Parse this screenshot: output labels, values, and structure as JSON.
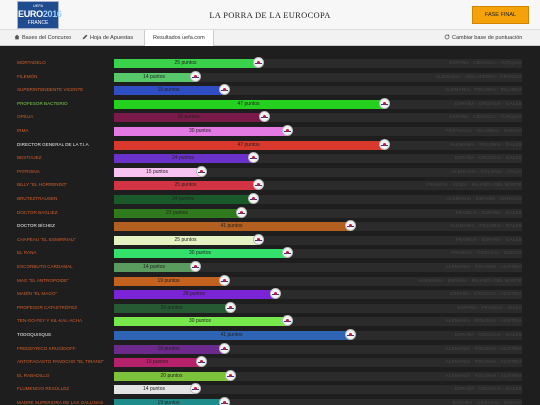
{
  "header": {
    "logo": {
      "uefa": "UEFA",
      "euro": "EURO",
      "year": "2016",
      "country": "FRANCE"
    },
    "title": "LA PORRA DE LA EUROCOPA",
    "fase_button": "FASE FINAL"
  },
  "nav": {
    "bases": "Bases del Concurso",
    "hoja": "Hoja de Apuestas",
    "resultados": "Resultados uefa.com",
    "cambiar": "Cambiar base de puntuación"
  },
  "colors": {
    "header_bg": "#f7f7f7",
    "accent": "#f5a10a",
    "page_bg": "#1e1e1e"
  },
  "rows": [
    {
      "name": "MORTADELO",
      "points": 25,
      "label": "25 puntos",
      "color": "#39d24a",
      "teams": "ESPAÑA · CROACIA · TURQUIA"
    },
    {
      "name": "FILEMÓN",
      "points": 14,
      "label": "14 puntos",
      "color": "#57c86a",
      "teams": "ALEMANIA · INGLATERRA · FRANCIA"
    },
    {
      "name": "SUPERINTENDENTE VICENTE",
      "points": 19,
      "label": "19 puntos",
      "color": "#2f4ec4",
      "teams": "ALEMANIA · POLONIA · IRLANDA"
    },
    {
      "name": "PROFESOR BACTERIO",
      "points": 47,
      "label": "47 puntos",
      "color": "#24d11f",
      "teams": "ESPAÑA · CROACIA · GALES"
    },
    {
      "name": "OFELIA",
      "points": 26,
      "label": "26 puntos",
      "color": "#7a1a4a",
      "teams": "ESPAÑA · CROACIA · TURQUIA"
    },
    {
      "name": "IRMA",
      "points": 30,
      "label": "30 puntos",
      "color": "#e37ae3",
      "teams": "PORTUGAL · ISLANDIA · SUECIA"
    },
    {
      "name": "DIRECTOR GENERAL DE LA T.I.A",
      "points": 47,
      "label": "47 puntos",
      "color": "#d9382c",
      "teams": "ALEMANIA · POLONIA · GALES"
    },
    {
      "name": "BESTIÁJEZ",
      "points": 24,
      "label": "24 puntos",
      "color": "#6a32c9",
      "teams": "ESPAÑA · CROACIA · GALES"
    },
    {
      "name": "PATROINA",
      "points": 15,
      "label": "15 puntos",
      "color": "#f7c1f0",
      "teams": "ALEMANIA · POLONIA · ITALIA"
    },
    {
      "name": "BILLY \"EL HORRENDO\"",
      "points": 25,
      "label": "25 puntos",
      "color": "#d23443",
      "teams": "FRANCIA · SUIZA · IRLANDA DEL NORTE"
    },
    {
      "name": "BRUTEZTRAUSEN",
      "points": 24,
      "label": "24 puntos",
      "color": "#1a5a2a",
      "teams": "ALEMANIA · ESPAÑA · CROACIA"
    },
    {
      "name": "DOCTOR BAGLIEZ",
      "points": 22,
      "label": "22 puntos",
      "color": "#2f7a1c",
      "teams": "FRANCIA · ESPAÑA · GALES"
    },
    {
      "name": "DOCTOR BÍCHEZ",
      "points": 41,
      "label": "41 puntos",
      "color": "#b25f1f",
      "teams": "ALEMANIA · POLONIA · GALES"
    },
    {
      "name": "CHAPEAU \"EL ESMIRRIAU\"",
      "points": 25,
      "label": "25 puntos",
      "color": "#e5f2c2",
      "teams": "FRANCIA · ESPAÑA · GALES"
    },
    {
      "name": "EL RANA",
      "points": 30,
      "label": "30 puntos",
      "color": "#33e06a",
      "teams": "FRANCIA · CROACIA · SUECIA"
    },
    {
      "name": "ESCORBUTO CARDAMAL",
      "points": 14,
      "label": "14 puntos",
      "color": "#5a9c5e",
      "teams": "ALEMANIA · POLONIA · AUSTRIA"
    },
    {
      "name": "MAG \"EL ANTROPOIDE\"",
      "points": 19,
      "label": "19 puntos",
      "color": "#c2621e",
      "teams": "ALEMANIA · ESPAÑA · IRLANDA DEL NORTE"
    },
    {
      "name": "MADÍN \"EL MAGO\"",
      "points": 28,
      "label": "28 puntos",
      "color": "#7a24d6",
      "teams": "ESPAÑA · CROACIA · AUSTRIA"
    },
    {
      "name": "PROFESOR CATASTRÓFEZ",
      "points": 20,
      "label": "20 puntos",
      "color": "#255a33",
      "teams": "ESPAÑA · FRANCIA · SUIZA"
    },
    {
      "name": "TEN-GO-FEY Y KIL-KAL-ACHA",
      "points": 30,
      "label": "30 puntos",
      "color": "#76e84c",
      "teams": "ALEMANIA · POLONIA · AUSTRIA"
    },
    {
      "name": "TODOQUISQUE",
      "points": 41,
      "label": "41 puntos",
      "color": "#2d64b3",
      "teams": "ESPAÑA · CROACIA · GALES"
    },
    {
      "name": "FREDDYRICO KRUGIDOFF",
      "points": 19,
      "label": "19 puntos",
      "color": "#6b2a8c",
      "teams": "ALEMANIA · POLONIA · AUSTRIA"
    },
    {
      "name": "ANTOFAGASTO PANOCHO \"EL TIRANO\"",
      "points": 15,
      "label": "15 puntos",
      "color": "#b5216a",
      "teams": "ALEMANIA · POLONIA · AUSTRIA"
    },
    {
      "name": "EL RABADILLO",
      "points": 20,
      "label": "20 puntos",
      "color": "#7cc23a",
      "teams": "ALEMANIA · POLONIA · AUSTRIA"
    },
    {
      "name": "FLUMENCIO RESÚLLEZ",
      "points": 14,
      "label": "14 puntos",
      "color": "#e3e3e3",
      "teams": "ESPAÑA · CROACIA · GALES"
    },
    {
      "name": "MADRE SUPERIORA DE LAS GALLINAS",
      "points": 19,
      "label": "19 puntos",
      "color": "#1f8c8c",
      "teams": "ESPAÑA · CROACIA · SUECIA"
    }
  ]
}
